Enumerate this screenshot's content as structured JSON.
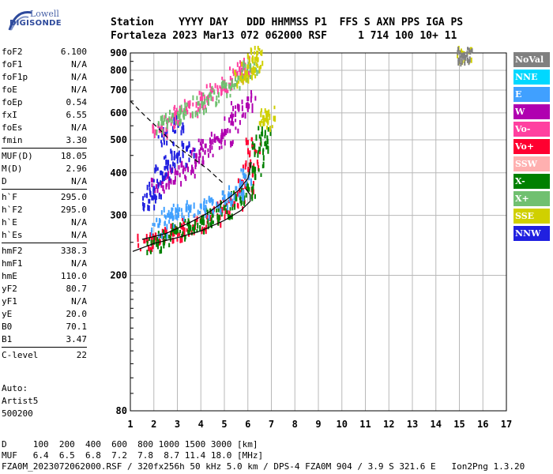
{
  "logo": {
    "line1": "Lowell",
    "line2": "DIGISONDE"
  },
  "header": {
    "row1": "Station    YYYY DAY   DDD HHMMSS P1  FFS S AXN PPS IGA PS",
    "row2": "Fortaleza 2023 Mar13 072 062000 RSF     1 714 100 10+ 11"
  },
  "params": [
    [
      [
        "foF2",
        "6.100"
      ],
      [
        "foF1",
        "N/A"
      ],
      [
        "foF1p",
        "N/A"
      ],
      [
        "foE",
        "N/A"
      ],
      [
        "foEp",
        "0.54"
      ],
      [
        "fxI",
        "6.55"
      ],
      [
        "foEs",
        "N/A"
      ],
      [
        "fmin",
        "3.30"
      ]
    ],
    [
      [
        "MUF(D)",
        "18.05"
      ],
      [
        "M(D)",
        "2.96"
      ],
      [
        "D",
        "N/A"
      ]
    ],
    [
      [
        "h`F",
        "295.0"
      ],
      [
        "h`F2",
        "295.0"
      ],
      [
        "h`E",
        "N/A"
      ],
      [
        "h`Es",
        "N/A"
      ]
    ],
    [
      [
        "hmF2",
        "338.3"
      ],
      [
        "hmF1",
        "N/A"
      ],
      [
        "hmE",
        "110.0"
      ],
      [
        "yF2",
        "80.7"
      ],
      [
        "yF1",
        "N/A"
      ],
      [
        "yE",
        "20.0"
      ],
      [
        "B0",
        "70.1"
      ],
      [
        "B1",
        "3.47"
      ]
    ],
    [
      [
        "C-level",
        "22"
      ]
    ]
  ],
  "extra": {
    "label": "Auto:",
    "name": "Artist5",
    "version": "500200"
  },
  "legend": [
    {
      "label": "NoVal",
      "color": "#808080"
    },
    {
      "label": "NNE",
      "color": "#00d8ff"
    },
    {
      "label": "E",
      "color": "#40a0ff"
    },
    {
      "label": "W",
      "color": "#b000b0"
    },
    {
      "label": "Vo-",
      "color": "#ff40a0"
    },
    {
      "label": "Vo+",
      "color": "#ff0030"
    },
    {
      "label": "SSW",
      "color": "#ffb0b0"
    },
    {
      "label": "X-",
      "color": "#008000"
    },
    {
      "label": "X+",
      "color": "#70c070"
    },
    {
      "label": "SSE",
      "color": "#d0d000"
    },
    {
      "label": "NNW",
      "color": "#2020e0"
    }
  ],
  "footer": {
    "line1": "D     100  200  400  600  800 1000 1500 3000 [km]",
    "line2": "MUF   6.4  6.5  6.8  7.2  7.8  8.7 11.4 18.0 [MHz]",
    "line3": "FZA0M_2023072062000.RSF / 320fx256h 50 kHz 5.0 km / DPS-4 FZA0M 904 / 3.9 S 321.6 E   Ion2Png 1.3.20"
  },
  "chart_data": {
    "type": "scatter",
    "title": "",
    "xlabel": "",
    "ylabel": "",
    "xlim": [
      1,
      17
    ],
    "ylim": [
      80,
      900
    ],
    "y_scale": "log",
    "x_ticks": [
      1,
      2,
      3,
      4,
      5,
      6,
      7,
      8,
      9,
      10,
      11,
      12,
      13,
      14,
      15,
      16,
      17
    ],
    "y_ticks": [
      80,
      200,
      300,
      400,
      500,
      600,
      700,
      800,
      900
    ],
    "series": [
      {
        "name": "Vo+",
        "points": [
          [
            1.6,
            252
          ],
          [
            2.0,
            258
          ],
          [
            2.5,
            265
          ],
          [
            3.0,
            272
          ],
          [
            3.5,
            280
          ],
          [
            4.0,
            290
          ],
          [
            4.5,
            302
          ],
          [
            5.0,
            318
          ],
          [
            5.5,
            338
          ],
          [
            5.9,
            365
          ],
          [
            6.1,
            420
          ],
          [
            6.2,
            480
          ]
        ]
      },
      {
        "name": "X-",
        "points": [
          [
            2.0,
            250
          ],
          [
            2.5,
            262
          ],
          [
            3.0,
            270
          ],
          [
            3.5,
            278
          ],
          [
            4.0,
            288
          ],
          [
            4.5,
            300
          ],
          [
            5.0,
            315
          ],
          [
            5.5,
            335
          ],
          [
            6.0,
            360
          ],
          [
            6.3,
            410
          ],
          [
            6.5,
            470
          ],
          [
            6.6,
            520
          ]
        ]
      },
      {
        "name": "E",
        "points": [
          [
            2.2,
            280
          ],
          [
            2.6,
            300
          ],
          [
            3.0,
            310
          ],
          [
            3.5,
            315
          ],
          [
            4.0,
            320
          ],
          [
            4.5,
            330
          ],
          [
            5.0,
            340
          ],
          [
            5.5,
            360
          ],
          [
            5.9,
            390
          ]
        ]
      },
      {
        "name": "W",
        "points": [
          [
            2.2,
            370
          ],
          [
            2.6,
            390
          ],
          [
            3.0,
            400
          ],
          [
            3.4,
            420
          ],
          [
            3.8,
            450
          ],
          [
            4.2,
            480
          ],
          [
            4.6,
            500
          ],
          [
            5.0,
            520
          ],
          [
            5.3,
            560
          ],
          [
            5.6,
            620
          ],
          [
            6.0,
            660
          ]
        ]
      },
      {
        "name": "NNW",
        "points": [
          [
            1.8,
            330
          ],
          [
            2.0,
            360
          ],
          [
            2.3,
            400
          ],
          [
            2.6,
            430
          ],
          [
            3.0,
            450
          ],
          [
            3.4,
            470
          ],
          [
            2.5,
            520
          ],
          [
            2.9,
            560
          ]
        ]
      },
      {
        "name": "Vo-",
        "points": [
          [
            2.2,
            550
          ],
          [
            2.6,
            570
          ],
          [
            3.0,
            600
          ],
          [
            3.5,
            630
          ],
          [
            4.0,
            660
          ],
          [
            4.5,
            700
          ],
          [
            5.0,
            740
          ],
          [
            5.5,
            780
          ],
          [
            5.8,
            830
          ]
        ]
      },
      {
        "name": "X+",
        "points": [
          [
            2.4,
            560
          ],
          [
            2.8,
            590
          ],
          [
            3.3,
            610
          ],
          [
            3.9,
            640
          ],
          [
            4.4,
            680
          ],
          [
            5.0,
            720
          ],
          [
            5.6,
            760
          ],
          [
            6.1,
            820
          ]
        ]
      },
      {
        "name": "SSE",
        "points": [
          [
            5.7,
            760
          ],
          [
            6.0,
            820
          ],
          [
            6.2,
            860
          ],
          [
            6.4,
            900
          ],
          [
            6.8,
            600
          ],
          [
            6.8,
            580
          ],
          [
            15.2,
            895
          ]
        ]
      },
      {
        "name": "NoVal",
        "points": [
          [
            15.2,
            890
          ],
          [
            15.2,
            880
          ]
        ]
      }
    ],
    "trace_lines": [
      {
        "name": "profile",
        "points": [
          [
            1.1,
            235
          ],
          [
            2.0,
            248
          ],
          [
            3.0,
            258
          ],
          [
            4.0,
            270
          ],
          [
            5.0,
            290
          ],
          [
            5.7,
            310
          ],
          [
            6.1,
            330
          ],
          [
            6.1,
            345
          ],
          [
            5.9,
            360
          ]
        ]
      },
      {
        "name": "virtual_height",
        "points": [
          [
            1.5,
            255
          ],
          [
            2.5,
            265
          ],
          [
            3.5,
            285
          ],
          [
            4.3,
            305
          ],
          [
            5.0,
            330
          ],
          [
            5.6,
            355
          ],
          [
            6.0,
            385
          ],
          [
            6.15,
            430
          ]
        ]
      },
      {
        "name": "muf_dashed",
        "points": [
          [
            1.0,
            650
          ],
          [
            1.6,
            590
          ],
          [
            2.2,
            540
          ],
          [
            2.8,
            490
          ],
          [
            3.5,
            450
          ],
          [
            4.3,
            410
          ],
          [
            5.0,
            370
          ]
        ]
      }
    ]
  }
}
